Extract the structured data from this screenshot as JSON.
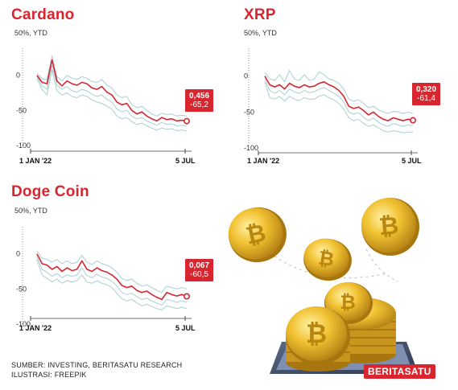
{
  "colors": {
    "accent": "#d7262f",
    "band": "#a9cfd3",
    "axis": "#444444"
  },
  "chart_data": [
    {
      "type": "line",
      "title": "Cardano",
      "unit_label": "50%, YTD",
      "ylim": [
        -100,
        50
      ],
      "yticks": [
        0,
        -50,
        -100
      ],
      "x_tick_labels": [
        "1 JAN '22",
        "5 JUL"
      ],
      "callout": {
        "price": "0,456",
        "change": "-65,2"
      },
      "series": [
        {
          "values": [
            0,
            -10,
            -12,
            22,
            -8,
            -15,
            -8,
            -12,
            -14,
            -10,
            -12,
            -18,
            -20,
            -16,
            -24,
            -28,
            -38,
            -42,
            -40,
            -50,
            -55,
            -52,
            -58,
            -62,
            -65,
            -60,
            -63,
            -62,
            -65,
            -64,
            -65.2
          ]
        },
        {
          "values": [
            -5,
            -20,
            -28,
            8,
            -22,
            -28,
            -25,
            -30,
            -32,
            -28,
            -30,
            -35,
            -38,
            -40,
            -44,
            -48,
            -58,
            -62,
            -60,
            -66,
            -70,
            -68,
            -72,
            -75,
            -78,
            -75,
            -77,
            -76,
            -79,
            -78,
            -79
          ]
        },
        {
          "values": [
            -2,
            -15,
            -20,
            14,
            -14,
            -20,
            -16,
            -22,
            -24,
            -20,
            -22,
            -27,
            -30,
            -28,
            -34,
            -38,
            -48,
            -52,
            -50,
            -58,
            -62,
            -60,
            -65,
            -68,
            -71,
            -67,
            -70,
            -69,
            -72,
            -71,
            -72
          ]
        },
        {
          "values": [
            3,
            -5,
            -6,
            28,
            -2,
            -8,
            0,
            -4,
            -6,
            -2,
            -4,
            -9,
            -10,
            -6,
            -14,
            -18,
            -28,
            -32,
            -30,
            -42,
            -46,
            -44,
            -50,
            -55,
            -58,
            -54,
            -56,
            -55,
            -58,
            -57,
            -58
          ]
        }
      ]
    },
    {
      "type": "line",
      "title": "XRP",
      "unit_label": "50%, YTD",
      "ylim": [
        -100,
        50
      ],
      "yticks": [
        0,
        -50,
        -100
      ],
      "x_tick_labels": [
        "1 JAN '22",
        "5 JUL"
      ],
      "callout": {
        "price": "0,320",
        "change": "-61,4"
      },
      "series": [
        {
          "values": [
            0,
            -12,
            -15,
            -12,
            -18,
            -10,
            -14,
            -16,
            -12,
            -15,
            -14,
            -10,
            -8,
            -12,
            -15,
            -20,
            -28,
            -42,
            -45,
            -43,
            -48,
            -54,
            -50,
            -56,
            -60,
            -62,
            -58,
            -60,
            -62,
            -60,
            -61.4
          ]
        },
        {
          "values": [
            -8,
            -30,
            -32,
            -28,
            -35,
            -28,
            -32,
            -34,
            -30,
            -32,
            -32,
            -28,
            -26,
            -30,
            -33,
            -38,
            -46,
            -58,
            -62,
            -60,
            -66,
            -70,
            -68,
            -72,
            -76,
            -78,
            -76,
            -77,
            -79,
            -78,
            -78
          ]
        },
        {
          "values": [
            -4,
            -20,
            -24,
            -20,
            -26,
            -18,
            -22,
            -24,
            -20,
            -23,
            -22,
            -18,
            -16,
            -20,
            -24,
            -28,
            -36,
            -50,
            -53,
            -51,
            -57,
            -62,
            -58,
            -64,
            -68,
            -70,
            -66,
            -68,
            -70,
            -68,
            -69
          ]
        },
        {
          "values": [
            5,
            -4,
            -6,
            2,
            -8,
            8,
            -4,
            -6,
            2,
            -6,
            -4,
            6,
            2,
            -4,
            -6,
            -10,
            -18,
            -32,
            -35,
            -33,
            -38,
            -44,
            -42,
            -47,
            -50,
            -52,
            -49,
            -50,
            -52,
            -50,
            -52
          ]
        }
      ]
    },
    {
      "type": "line",
      "title": "Doge Coin",
      "unit_label": "50%, YTD",
      "ylim": [
        -100,
        50
      ],
      "yticks": [
        0,
        -50,
        -100
      ],
      "x_tick_labels": [
        "1 JAN '22",
        "5 JUL"
      ],
      "callout": {
        "price": "0,067",
        "change": "-60,5"
      },
      "series": [
        {
          "values": [
            0,
            -14,
            -16,
            -22,
            -18,
            -25,
            -20,
            -24,
            -22,
            -10,
            -22,
            -25,
            -20,
            -24,
            -26,
            -30,
            -36,
            -45,
            -48,
            -46,
            -52,
            -55,
            -53,
            -58,
            -62,
            -65,
            -55,
            -58,
            -60,
            -58,
            -60.5
          ]
        },
        {
          "values": [
            -8,
            -30,
            -35,
            -40,
            -36,
            -42,
            -38,
            -40,
            -38,
            -30,
            -40,
            -42,
            -38,
            -42,
            -44,
            -48,
            -56,
            -64,
            -67,
            -65,
            -70,
            -74,
            -72,
            -75,
            -78,
            -80,
            -74,
            -76,
            -78,
            -76,
            -78
          ]
        },
        {
          "values": [
            -4,
            -22,
            -26,
            -32,
            -28,
            -34,
            -30,
            -32,
            -30,
            -20,
            -31,
            -34,
            -29,
            -33,
            -35,
            -39,
            -46,
            -55,
            -58,
            -56,
            -61,
            -65,
            -63,
            -67,
            -70,
            -73,
            -65,
            -67,
            -69,
            -67,
            -69
          ]
        },
        {
          "values": [
            4,
            -6,
            -8,
            -12,
            -8,
            -14,
            -10,
            -14,
            -12,
            -2,
            -12,
            -15,
            -10,
            -14,
            -16,
            -20,
            -26,
            -35,
            -38,
            -36,
            -42,
            -46,
            -44,
            -48,
            -52,
            -55,
            -46,
            -48,
            -50,
            -48,
            -50
          ]
        }
      ]
    }
  ],
  "footer": {
    "source": "SUMBER: INVESTING, BERITASATU RESEARCH",
    "illustration": "ILUSTRASI: FREEPIK"
  },
  "logo": {
    "text": "BERITASATU"
  },
  "illustration": {
    "coin_symbol": "₿"
  }
}
